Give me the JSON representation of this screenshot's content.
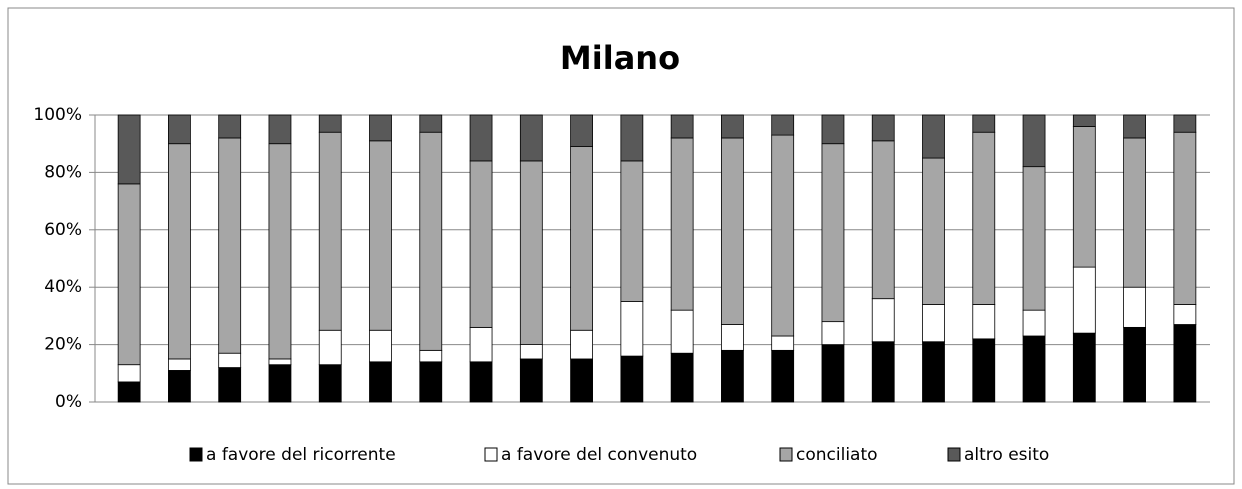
{
  "chart_data": {
    "type": "stacked_bar_100",
    "title": "Milano",
    "categories": [
      null,
      null,
      null,
      null,
      null,
      null,
      null,
      null,
      null,
      null,
      null,
      null,
      null,
      null,
      null,
      null,
      null,
      null,
      null,
      null,
      null,
      null
    ],
    "series": [
      {
        "name": "a favore del ricorrente",
        "color": "#000000",
        "values": [
          7,
          11,
          12,
          13,
          13,
          14,
          14,
          14,
          15,
          15,
          16,
          17,
          18,
          18,
          20,
          21,
          21,
          22,
          23,
          24,
          26,
          27
        ]
      },
      {
        "name": "a favore del convenuto",
        "color": "#ffffff",
        "values": [
          6,
          4,
          5,
          2,
          12,
          11,
          4,
          12,
          5,
          10,
          19,
          15,
          9,
          5,
          8,
          15,
          13,
          12,
          9,
          23,
          14,
          7
        ]
      },
      {
        "name": "conciliato",
        "color": "#a6a6a6",
        "values": [
          63,
          75,
          75,
          75,
          69,
          66,
          76,
          58,
          64,
          64,
          49,
          60,
          65,
          70,
          62,
          55,
          51,
          60,
          50,
          49,
          52,
          60
        ]
      },
      {
        "name": "altro esito",
        "color": "#595959",
        "values": [
          24,
          10,
          8,
          10,
          6,
          9,
          6,
          16,
          16,
          11,
          16,
          8,
          8,
          7,
          10,
          9,
          15,
          6,
          18,
          4,
          8,
          6
        ]
      }
    ],
    "ylim": [
      0,
      100
    ],
    "yticks": [
      {
        "value": 0,
        "label": "0%"
      },
      {
        "value": 20,
        "label": "20%"
      },
      {
        "value": 40,
        "label": "40%"
      },
      {
        "value": 60,
        "label": "60%"
      },
      {
        "value": 80,
        "label": "80%"
      },
      {
        "value": 100,
        "label": "100%"
      }
    ],
    "grid": true,
    "legend": "bottom"
  }
}
